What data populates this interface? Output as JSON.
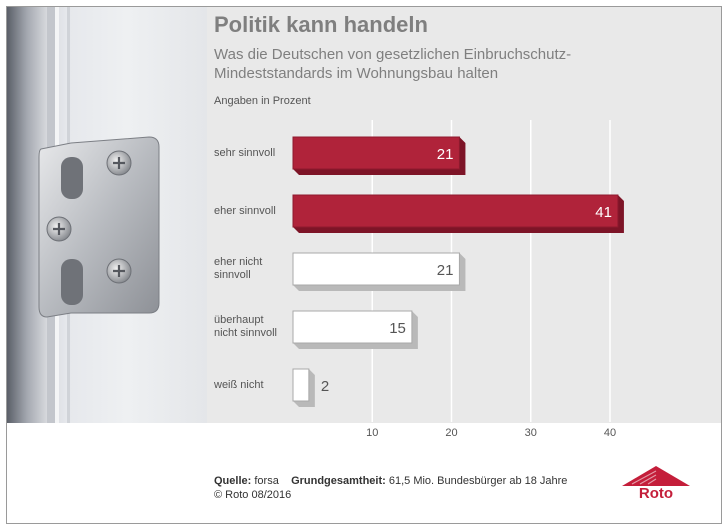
{
  "title": "Politik kann handeln",
  "subtitle": "Was die Deutschen von gesetzlichen Einbruchschutz-Mindeststandards im Wohnungsbau halten",
  "unit_label": "Angaben in Prozent",
  "source": {
    "source_label": "Quelle:",
    "source_value": "forsa",
    "population_label": "Grundgesamtheit:",
    "population_value": "61,5 Mio. Bundesbürger ab 18 Jahre"
  },
  "copyright": "© Roto 08/2016",
  "logo_text": "Roto",
  "colors": {
    "highlight": "#b0233a",
    "plain": "#ffffff",
    "background": "#e9e9e9"
  },
  "chart_data": {
    "type": "bar",
    "orientation": "horizontal",
    "categories": [
      "sehr sinnvoll",
      "eher sinnvoll",
      "eher nicht sinnvoll",
      "überhaupt nicht sinnvoll",
      "weiß nicht"
    ],
    "category_lines": [
      [
        "sehr sinnvoll"
      ],
      [
        "eher sinnvoll"
      ],
      [
        "eher nicht",
        "sinnvoll"
      ],
      [
        "überhaupt",
        "nicht sinnvoll"
      ],
      [
        "weiß nicht"
      ]
    ],
    "values": [
      21,
      41,
      21,
      15,
      2
    ],
    "highlighted": [
      true,
      true,
      false,
      false,
      false
    ],
    "xticks": [
      10,
      20,
      30,
      40
    ],
    "xlim": [
      0,
      40
    ],
    "grid": true
  }
}
